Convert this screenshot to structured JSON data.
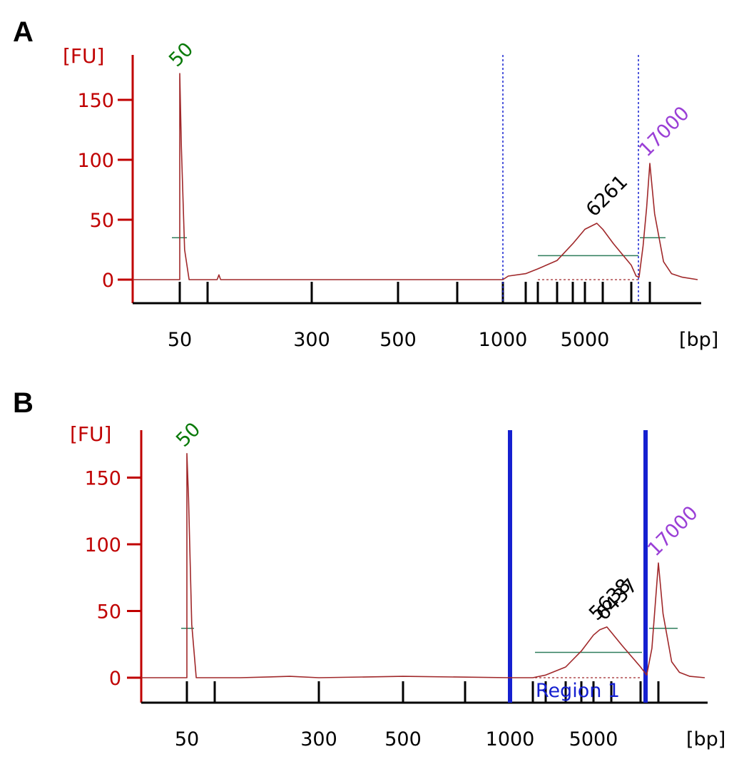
{
  "colors": {
    "axis": "#c00000",
    "trace": "#a0282a",
    "baseline_marker": "#2e7d5b",
    "marker_50": "#0a7a0a",
    "marker_17000": "#9a3fd6",
    "region": "#1520d0",
    "black": "#000000"
  },
  "chart_data": [
    {
      "panel": "A",
      "type": "line",
      "ylabel": "[FU]",
      "xlabel": "[bp]",
      "ylim": [
        -18,
        180
      ],
      "yticks": [
        0,
        50,
        100,
        150
      ],
      "x_tick_labels": [
        "50",
        "300",
        "500",
        "1000",
        "5000"
      ],
      "grid": false,
      "peak_labels": [
        {
          "text": "50",
          "x": 50,
          "y": 172,
          "color": "marker_50"
        },
        {
          "text": "6261",
          "x": 6261,
          "y": 47,
          "color": "black"
        },
        {
          "text": "17000",
          "x": 17000,
          "y": 97,
          "color": "marker_17000"
        }
      ],
      "region_markers": {
        "style": "dashed",
        "x": [
          1000,
          12000
        ]
      },
      "series": [
        {
          "values": [
            [
              45,
              0
            ],
            [
              48,
              25
            ],
            [
              49,
              95
            ],
            [
              50,
              172
            ],
            [
              51,
              110
            ],
            [
              53,
              25
            ],
            [
              56,
              0
            ],
            [
              80,
              0
            ],
            [
              82,
              4
            ],
            [
              84,
              0
            ],
            [
              1000,
              0
            ],
            [
              1100,
              3
            ],
            [
              1500,
              5
            ],
            [
              2000,
              9
            ],
            [
              3000,
              16
            ],
            [
              4000,
              30
            ],
            [
              5000,
              42
            ],
            [
              6261,
              47
            ],
            [
              7000,
              42
            ],
            [
              8000,
              30
            ],
            [
              10000,
              12
            ],
            [
              11500,
              3
            ],
            [
              12500,
              2
            ],
            [
              14000,
              28
            ],
            [
              15500,
              60
            ],
            [
              17000,
              97
            ],
            [
              18000,
              55
            ],
            [
              20000,
              15
            ],
            [
              22000,
              5
            ],
            [
              25000,
              2
            ],
            [
              30000,
              0
            ]
          ]
        }
      ]
    },
    {
      "panel": "B",
      "type": "line",
      "ylabel": "[FU]",
      "xlabel": "[bp]",
      "ylim": [
        -18,
        180
      ],
      "yticks": [
        0,
        50,
        100,
        150
      ],
      "x_tick_labels": [
        "50",
        "300",
        "500",
        "1000",
        "5000"
      ],
      "grid": false,
      "peak_labels": [
        {
          "text": "50",
          "x": 50,
          "y": 168,
          "color": "marker_50"
        },
        {
          "text": "5638",
          "x": 5638,
          "y": 38,
          "color": "black"
        },
        {
          "text": "6437",
          "x": 6437,
          "y": 38,
          "color": "black"
        },
        {
          "text": "17000",
          "x": 17000,
          "y": 86,
          "color": "marker_17000"
        }
      ],
      "region_markers": {
        "style": "solid",
        "x": [
          1000,
          12000
        ],
        "label": "Region 1"
      },
      "series": [
        {
          "values": [
            [
              45,
              0
            ],
            [
              48,
              35
            ],
            [
              49,
              110
            ],
            [
              50,
              168
            ],
            [
              51,
              135
            ],
            [
              53,
              40
            ],
            [
              56,
              0
            ],
            [
              100,
              0
            ],
            [
              200,
              1
            ],
            [
              300,
              0
            ],
            [
              500,
              1
            ],
            [
              1000,
              0
            ],
            [
              1500,
              0
            ],
            [
              2000,
              2
            ],
            [
              3000,
              8
            ],
            [
              4000,
              20
            ],
            [
              5000,
              32
            ],
            [
              5638,
              36
            ],
            [
              6437,
              38
            ],
            [
              7000,
              34
            ],
            [
              8000,
              24
            ],
            [
              10000,
              8
            ],
            [
              12000,
              2
            ],
            [
              14000,
              22
            ],
            [
              15500,
              55
            ],
            [
              17000,
              86
            ],
            [
              18000,
              48
            ],
            [
              20000,
              12
            ],
            [
              22000,
              4
            ],
            [
              25000,
              1
            ],
            [
              30000,
              0
            ]
          ]
        }
      ]
    }
  ]
}
